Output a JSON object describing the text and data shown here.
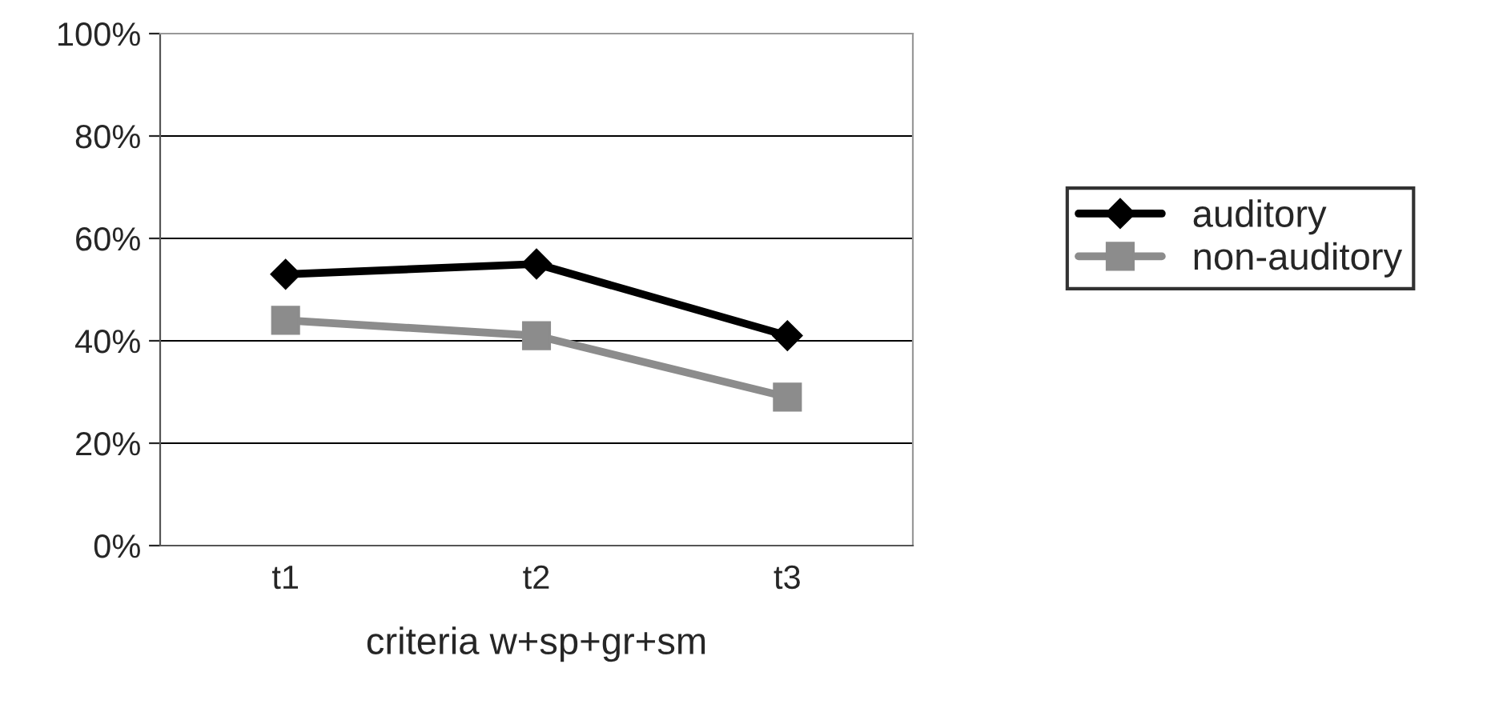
{
  "chart_data": {
    "type": "line",
    "xlabel": "criteria w+sp+gr+sm",
    "categories": [
      "t1",
      "t2",
      "t3"
    ],
    "series": [
      {
        "name": "auditory",
        "color": "#000000",
        "marker": "diamond",
        "values": [
          53,
          55,
          41
        ]
      },
      {
        "name": "non-auditory",
        "color": "#8c8c8c",
        "marker": "square",
        "values": [
          44,
          41,
          29
        ]
      }
    ],
    "ylim": [
      0,
      100
    ],
    "yticks": [
      {
        "value": 0,
        "label": "0%"
      },
      {
        "value": 20,
        "label": "20%"
      },
      {
        "value": 40,
        "label": "40%"
      },
      {
        "value": 60,
        "label": "60%"
      },
      {
        "value": 80,
        "label": "80%"
      },
      {
        "value": 100,
        "label": "100%"
      }
    ],
    "grid": "y",
    "legend": "right",
    "line_style": "solid"
  }
}
